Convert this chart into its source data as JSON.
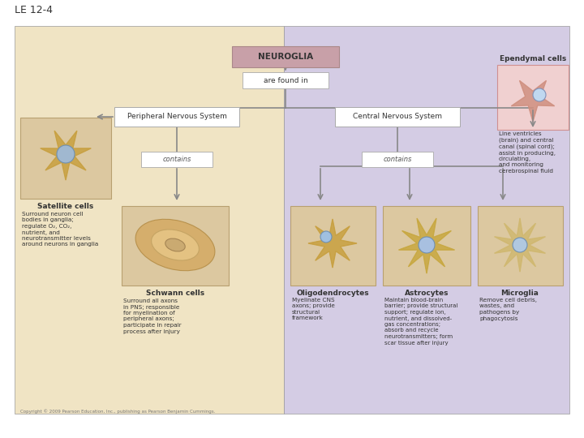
{
  "title": "LE 12-4",
  "bg_left_color": "#f0e4c4",
  "bg_right_color": "#d4cce4",
  "neuroglia_box_color": "#c8a0a8",
  "neuroglia_text": "NEUROGLIA",
  "are_found_in_text": "are found in",
  "pns_text": "Peripheral Nervous System",
  "cns_text": "Central Nervous System",
  "contains_text": "contains",
  "satellite_cells_title": "Satellite cells",
  "satellite_cells_desc": "Surround neuron cell\nbodies in ganglia;\nregulate O₂, CO₂,\nnutrient, and\nneurotransmitter levels\naround neurons in ganglia",
  "schwann_cells_title": "Schwann cells",
  "schwann_cells_desc": "Surround all axons\nin PNS; responsible\nfor myelination of\nperipheral axons;\nparticipate in repair\nprocess after injury",
  "ependymal_cells_title": "Ependymal cells",
  "ependymal_cells_desc": "Line ventricles\n(brain) and central\ncanal (spinal cord);\nassist in producing,\ncirculating,\nand monitoring\ncerebrospinal fluid",
  "oligo_title": "Oligodendrocytes",
  "oligo_desc": "Myelinate CNS\naxons; provide\nstructural\nframework",
  "astro_title": "Astrocytes",
  "astro_desc": "Maintain blood-brain\nbarrier; provide structural\nsupport; regulate ion,\nnutrient, and dissolved-\ngas concentrations;\nabsorb and recycle\nneurotransmitters; form\nscar tissue after injury",
  "micro_title": "Microglia",
  "micro_desc": "Remove cell debris,\nwastes, and\npathogens by\nphagocytosis",
  "cell_box_color": "#dcc8a0",
  "cell_box_edge": "#b8a070",
  "arrow_color": "#888888",
  "white_box_color": "#ffffff",
  "white_box_edge": "#aaaaaa",
  "copyright_text": "Copyright © 2009 Pearson Education, Inc., publishing as Pearson Benjamin Cummings.",
  "ependymal_box_color": "#e8c8c8",
  "ependymal_box_edge": "#c09090"
}
